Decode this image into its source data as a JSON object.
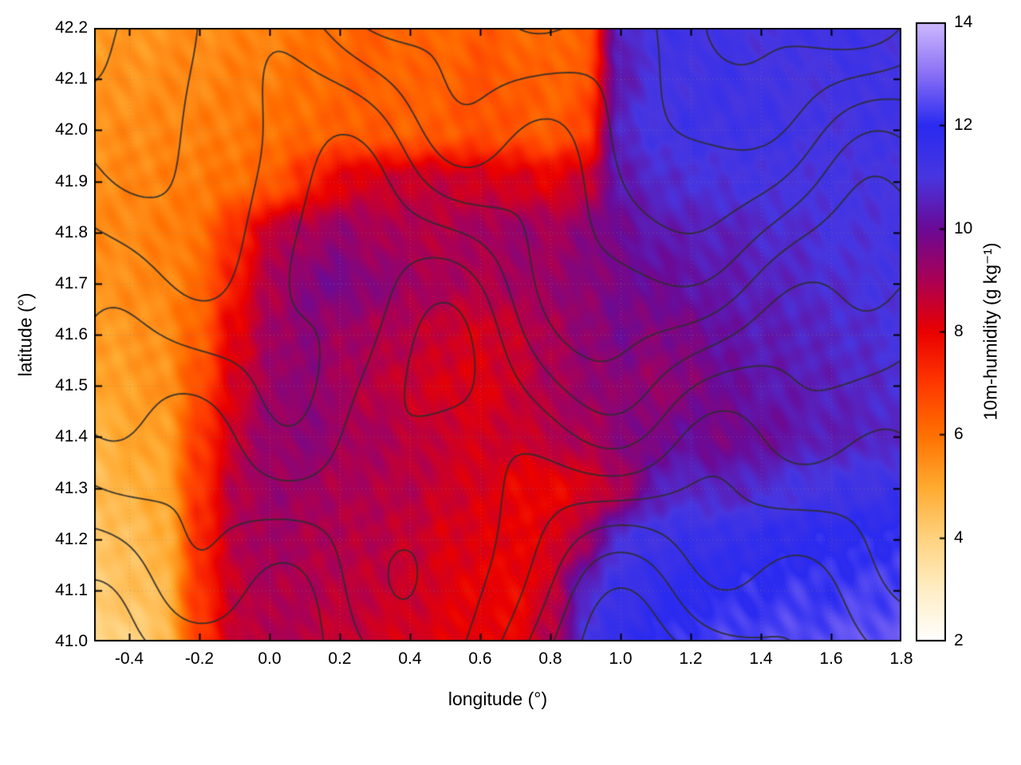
{
  "figure": {
    "background": "#ffffff"
  },
  "chart_data": {
    "type": "heatmap",
    "title": "",
    "xlabel": "longitude (°)",
    "ylabel": "latitude (°)",
    "colorbar_label": "10m-humidity (g kg⁻¹)",
    "xlim": [
      -0.5,
      1.8
    ],
    "ylim": [
      41.0,
      42.2
    ],
    "zlim": [
      2,
      14
    ],
    "xticks": [
      -0.4,
      -0.2,
      0.0,
      0.2,
      0.4,
      0.6,
      0.8,
      1.0,
      1.2,
      1.4,
      1.6,
      1.8
    ],
    "yticks": [
      41.0,
      41.1,
      41.2,
      41.3,
      41.4,
      41.5,
      41.6,
      41.7,
      41.8,
      41.9,
      42.0,
      42.1,
      42.2
    ],
    "colorbar_ticks": [
      2,
      4,
      6,
      8,
      10,
      12,
      14
    ],
    "grid": true,
    "legend_position": "colorbar-right",
    "grid_x0": -0.5,
    "grid_dx": 0.1,
    "grid_y0": 42.2,
    "grid_dy": -0.1,
    "values": [
      [
        5.2,
        5.3,
        5.4,
        5.5,
        5.6,
        5.7,
        5.9,
        6.1,
        6.3,
        6.2,
        6.1,
        6.4,
        6.2,
        6.0,
        6.4,
        10.6,
        11.2,
        11.3,
        11.2,
        11.0,
        11.2,
        11.4,
        11.2,
        11.0
      ],
      [
        5.3,
        5.4,
        5.5,
        5.6,
        5.7,
        5.8,
        6.0,
        6.2,
        6.3,
        6.2,
        6.3,
        6.5,
        6.4,
        6.2,
        6.5,
        10.4,
        11.0,
        11.2,
        11.3,
        11.2,
        11.0,
        11.1,
        11.3,
        11.2
      ],
      [
        5.4,
        5.5,
        5.6,
        5.7,
        5.8,
        6.0,
        6.1,
        6.3,
        6.4,
        6.3,
        6.4,
        6.6,
        6.5,
        6.3,
        6.9,
        10.7,
        11.1,
        11.3,
        11.2,
        11.3,
        11.2,
        11.0,
        11.2,
        11.3
      ],
      [
        5.5,
        5.6,
        5.7,
        5.8,
        6.0,
        6.3,
        7.2,
        8.1,
        8.4,
        8.6,
        8.6,
        8.4,
        8.3,
        8.1,
        8.6,
        10.3,
        10.7,
        10.9,
        11.0,
        11.1,
        11.0,
        11.1,
        11.0,
        11.1
      ],
      [
        5.5,
        5.6,
        5.7,
        6.0,
        7.2,
        8.6,
        9.1,
        9.3,
        9.1,
        8.9,
        8.9,
        9.1,
        9.3,
        9.1,
        9.5,
        10.0,
        10.3,
        10.5,
        10.5,
        10.7,
        10.8,
        11.0,
        11.0,
        11.1
      ],
      [
        5.4,
        5.5,
        5.6,
        6.1,
        7.6,
        8.9,
        9.6,
        9.8,
        9.5,
        9.2,
        9.0,
        8.9,
        9.1,
        9.3,
        9.5,
        9.8,
        10.0,
        10.2,
        10.4,
        10.5,
        10.7,
        10.8,
        11.0,
        11.0
      ],
      [
        5.2,
        5.3,
        5.5,
        6.3,
        8.1,
        9.1,
        9.5,
        9.2,
        9.0,
        8.8,
        8.5,
        8.3,
        8.6,
        9.0,
        9.4,
        9.8,
        9.6,
        9.8,
        10.2,
        10.4,
        10.5,
        10.7,
        10.8,
        11.0
      ],
      [
        5.0,
        5.2,
        5.4,
        6.6,
        8.3,
        9.2,
        9.5,
        9.1,
        8.8,
        8.5,
        8.3,
        8.2,
        8.5,
        9.0,
        9.3,
        9.5,
        9.3,
        9.6,
        10.0,
        10.3,
        10.4,
        10.5,
        10.7,
        10.8
      ],
      [
        4.8,
        5.0,
        5.2,
        6.9,
        8.6,
        9.3,
        9.5,
        9.2,
        9.0,
        8.8,
        8.5,
        8.4,
        8.5,
        8.8,
        9.0,
        9.5,
        9.8,
        10.0,
        9.8,
        10.0,
        10.3,
        10.5,
        10.5,
        10.7
      ],
      [
        4.5,
        4.8,
        5.0,
        7.1,
        8.8,
        9.3,
        9.2,
        9.0,
        8.9,
        8.8,
        8.5,
        8.3,
        8.0,
        7.9,
        8.3,
        8.9,
        10.4,
        10.7,
        10.5,
        10.8,
        11.0,
        11.2,
        11.3,
        11.4
      ],
      [
        4.3,
        4.5,
        4.8,
        7.2,
        8.8,
        9.2,
        9.0,
        8.9,
        8.8,
        8.6,
        8.3,
        8.2,
        8.0,
        8.2,
        9.1,
        11.0,
        11.3,
        11.5,
        11.5,
        11.7,
        11.8,
        11.9,
        12.0,
        12.1
      ],
      [
        4.2,
        4.4,
        4.6,
        7.1,
        8.6,
        9.0,
        8.9,
        8.8,
        8.6,
        8.5,
        8.2,
        8.0,
        7.9,
        8.5,
        10.7,
        11.4,
        11.7,
        11.9,
        12.0,
        12.1,
        12.2,
        12.2,
        12.3,
        12.4
      ],
      [
        3.8,
        4.0,
        4.5,
        7.0,
        8.5,
        9.0,
        8.8,
        8.6,
        8.5,
        8.3,
        8.2,
        8.0,
        8.0,
        8.8,
        11.0,
        11.7,
        12.0,
        12.2,
        12.3,
        12.4,
        12.4,
        12.5,
        12.6,
        12.7
      ]
    ],
    "palette": [
      {
        "v": 2,
        "c": "#ffffff"
      },
      {
        "v": 3,
        "c": "#ffedc4"
      },
      {
        "v": 4,
        "c": "#ffd27f"
      },
      {
        "v": 5,
        "c": "#ffa92e"
      },
      {
        "v": 6,
        "c": "#ff7000"
      },
      {
        "v": 7,
        "c": "#ff3800"
      },
      {
        "v": 8,
        "c": "#ea0000"
      },
      {
        "v": 9,
        "c": "#aa0055"
      },
      {
        "v": 10,
        "c": "#6a0a96"
      },
      {
        "v": 11,
        "c": "#4836e0"
      },
      {
        "v": 12,
        "c": "#2a2af0"
      },
      {
        "v": 13,
        "c": "#8a70f5"
      },
      {
        "v": 14,
        "c": "#cdbafd"
      }
    ],
    "contour_color": "#2d2d2d",
    "contour_levels": [
      -0.6,
      -0.3,
      0.0,
      0.3,
      0.6,
      0.9,
      1.2,
      1.5,
      1.8,
      2.1,
      2.4,
      2.7,
      3.0
    ]
  }
}
